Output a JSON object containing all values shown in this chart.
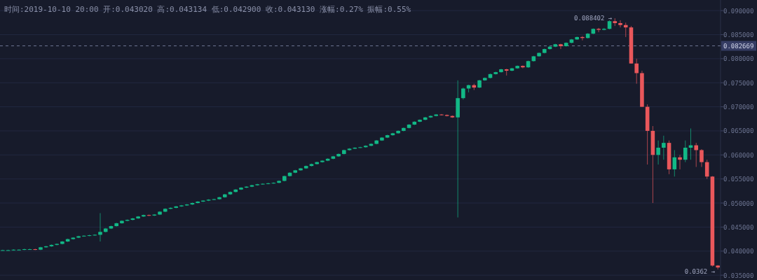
{
  "chart_data": {
    "type": "candlestick",
    "title": "时间:2019-10-10 20:00  开:0.043020  高:0.043134  低:0.042900  收:0.043130  涨幅:0.27%  振幅:0.55%",
    "categories": [
      null,
      null,
      null,
      null,
      null,
      null,
      null,
      null,
      null,
      null,
      null,
      null,
      null,
      null,
      null,
      null,
      null,
      null,
      null,
      null,
      null,
      null,
      null,
      null,
      null,
      null,
      null,
      null,
      null,
      null,
      null,
      null,
      null,
      null,
      null,
      null,
      null,
      null,
      null,
      null,
      null,
      null,
      null,
      null,
      null,
      null,
      null,
      null,
      null,
      null,
      null,
      null,
      null,
      null,
      null,
      null,
      null,
      null,
      null,
      null,
      null,
      null,
      null,
      null,
      null,
      null,
      null,
      null,
      null,
      null,
      null,
      null,
      null,
      null,
      null,
      null,
      null,
      null,
      null,
      null,
      null,
      null,
      null,
      null,
      null,
      null,
      null,
      null,
      null,
      null,
      null,
      null,
      null,
      null,
      null,
      null,
      null,
      null,
      null,
      null,
      null,
      null,
      null,
      null,
      null,
      null,
      null,
      null,
      null,
      null,
      null,
      null,
      null,
      null,
      null,
      null,
      null,
      null,
      null,
      null,
      null,
      null,
      null,
      null,
      null,
      null,
      null,
      null,
      null,
      null,
      null,
      null,
      null
    ],
    "ohlc": [
      [
        0.0402,
        0.0403,
        0.0401,
        0.0402
      ],
      [
        0.0402,
        0.0403,
        0.0401,
        0.0402
      ],
      [
        0.0402,
        0.0404,
        0.0401,
        0.0403
      ],
      [
        0.0403,
        0.0404,
        0.0402,
        0.0403
      ],
      [
        0.0403,
        0.0405,
        0.0402,
        0.0404
      ],
      [
        0.0404,
        0.0405,
        0.0403,
        0.0404
      ],
      [
        0.0404,
        0.0405,
        0.0402,
        0.0403
      ],
      [
        0.0403,
        0.0409,
        0.0402,
        0.0408
      ],
      [
        0.0408,
        0.0411,
        0.0407,
        0.041
      ],
      [
        0.041,
        0.0414,
        0.0409,
        0.0413
      ],
      [
        0.0413,
        0.0416,
        0.0412,
        0.0415
      ],
      [
        0.0415,
        0.0421,
        0.0414,
        0.042
      ],
      [
        0.042,
        0.0426,
        0.0419,
        0.0425
      ],
      [
        0.0425,
        0.0429,
        0.0424,
        0.0428
      ],
      [
        0.0428,
        0.0432,
        0.0427,
        0.0431
      ],
      [
        0.0431,
        0.0433,
        0.043,
        0.0432
      ],
      [
        0.0432,
        0.0434,
        0.0431,
        0.0433
      ],
      [
        0.0433,
        0.0435,
        0.0432,
        0.0434
      ],
      [
        0.0434,
        0.0479,
        0.042,
        0.044
      ],
      [
        0.044,
        0.0448,
        0.0439,
        0.0447
      ],
      [
        0.0447,
        0.0453,
        0.0446,
        0.0452
      ],
      [
        0.0452,
        0.0459,
        0.0451,
        0.0458
      ],
      [
        0.0458,
        0.0464,
        0.0457,
        0.0463
      ],
      [
        0.0463,
        0.0466,
        0.0462,
        0.0465
      ],
      [
        0.0465,
        0.0469,
        0.0464,
        0.0468
      ],
      [
        0.0468,
        0.0473,
        0.0467,
        0.0472
      ],
      [
        0.0472,
        0.0476,
        0.0471,
        0.0475
      ],
      [
        0.0475,
        0.0476,
        0.0473,
        0.0474
      ],
      [
        0.0474,
        0.0477,
        0.0473,
        0.0476
      ],
      [
        0.0476,
        0.0483,
        0.0475,
        0.0482
      ],
      [
        0.0482,
        0.0489,
        0.0481,
        0.0488
      ],
      [
        0.0488,
        0.0491,
        0.0487,
        0.049
      ],
      [
        0.049,
        0.0494,
        0.0489,
        0.0493
      ],
      [
        0.0493,
        0.0496,
        0.0492,
        0.0495
      ],
      [
        0.0495,
        0.0498,
        0.0494,
        0.0497
      ],
      [
        0.0497,
        0.0501,
        0.0496,
        0.05
      ],
      [
        0.05,
        0.0504,
        0.0499,
        0.0503
      ],
      [
        0.0503,
        0.0506,
        0.0502,
        0.0505
      ],
      [
        0.0505,
        0.0508,
        0.0504,
        0.0507
      ],
      [
        0.0507,
        0.0509,
        0.0506,
        0.0508
      ],
      [
        0.0508,
        0.0513,
        0.0507,
        0.0512
      ],
      [
        0.0512,
        0.0519,
        0.0511,
        0.0518
      ],
      [
        0.0518,
        0.0524,
        0.0517,
        0.0523
      ],
      [
        0.0523,
        0.0529,
        0.0522,
        0.0528
      ],
      [
        0.0528,
        0.0533,
        0.0527,
        0.0532
      ],
      [
        0.0532,
        0.0535,
        0.0531,
        0.0534
      ],
      [
        0.0534,
        0.0538,
        0.0533,
        0.0537
      ],
      [
        0.0537,
        0.054,
        0.0536,
        0.0539
      ],
      [
        0.0539,
        0.0541,
        0.0538,
        0.054
      ],
      [
        0.054,
        0.0542,
        0.0539,
        0.0541
      ],
      [
        0.0541,
        0.0543,
        0.054,
        0.0542
      ],
      [
        0.0542,
        0.0547,
        0.0541,
        0.0546
      ],
      [
        0.0546,
        0.0557,
        0.0545,
        0.0556
      ],
      [
        0.0556,
        0.0564,
        0.0555,
        0.0563
      ],
      [
        0.0563,
        0.0569,
        0.0562,
        0.0568
      ],
      [
        0.0568,
        0.0573,
        0.0567,
        0.0572
      ],
      [
        0.0572,
        0.0578,
        0.0571,
        0.0577
      ],
      [
        0.0577,
        0.0582,
        0.0576,
        0.0581
      ],
      [
        0.0581,
        0.0586,
        0.058,
        0.0585
      ],
      [
        0.0585,
        0.0589,
        0.0584,
        0.0588
      ],
      [
        0.0588,
        0.0593,
        0.0587,
        0.0592
      ],
      [
        0.0592,
        0.0598,
        0.0591,
        0.0597
      ],
      [
        0.0597,
        0.0603,
        0.0596,
        0.0602
      ],
      [
        0.0602,
        0.0611,
        0.0601,
        0.061
      ],
      [
        0.061,
        0.0614,
        0.0609,
        0.0613
      ],
      [
        0.0613,
        0.0616,
        0.0612,
        0.0615
      ],
      [
        0.0615,
        0.0617,
        0.0614,
        0.0616
      ],
      [
        0.0616,
        0.062,
        0.0615,
        0.0619
      ],
      [
        0.0619,
        0.0624,
        0.0618,
        0.0623
      ],
      [
        0.0623,
        0.0631,
        0.0622,
        0.063
      ],
      [
        0.063,
        0.0637,
        0.0629,
        0.0636
      ],
      [
        0.0636,
        0.0642,
        0.0635,
        0.0641
      ],
      [
        0.0641,
        0.0646,
        0.064,
        0.0645
      ],
      [
        0.0645,
        0.0651,
        0.0644,
        0.065
      ],
      [
        0.065,
        0.0657,
        0.0649,
        0.0656
      ],
      [
        0.0656,
        0.0664,
        0.0655,
        0.0663
      ],
      [
        0.0663,
        0.067,
        0.0662,
        0.0669
      ],
      [
        0.0669,
        0.0674,
        0.0668,
        0.0673
      ],
      [
        0.0673,
        0.0679,
        0.0672,
        0.0678
      ],
      [
        0.0678,
        0.0682,
        0.0677,
        0.0681
      ],
      [
        0.0681,
        0.0685,
        0.068,
        0.0684
      ],
      [
        0.0684,
        0.0685,
        0.0682,
        0.0683
      ],
      [
        0.0683,
        0.0684,
        0.068,
        0.0681
      ],
      [
        0.0681,
        0.0682,
        0.0677,
        0.0678
      ],
      [
        0.0678,
        0.0755,
        0.047,
        0.0718
      ],
      [
        0.0718,
        0.074,
        0.0715,
        0.0738
      ],
      [
        0.0738,
        0.0746,
        0.073,
        0.0745
      ],
      [
        0.0745,
        0.0748,
        0.0735,
        0.074
      ],
      [
        0.074,
        0.0756,
        0.0739,
        0.0755
      ],
      [
        0.0755,
        0.0761,
        0.0754,
        0.076
      ],
      [
        0.076,
        0.0769,
        0.0759,
        0.0768
      ],
      [
        0.0768,
        0.0773,
        0.0767,
        0.0772
      ],
      [
        0.0772,
        0.0779,
        0.0771,
        0.0778
      ],
      [
        0.0778,
        0.0779,
        0.0765,
        0.0775
      ],
      [
        0.0775,
        0.0781,
        0.0774,
        0.078
      ],
      [
        0.078,
        0.0786,
        0.0779,
        0.0785
      ],
      [
        0.0785,
        0.0786,
        0.078,
        0.0782
      ],
      [
        0.0782,
        0.0796,
        0.0781,
        0.0795
      ],
      [
        0.0795,
        0.0806,
        0.0794,
        0.0805
      ],
      [
        0.0805,
        0.0813,
        0.0804,
        0.0812
      ],
      [
        0.0812,
        0.0821,
        0.0811,
        0.082
      ],
      [
        0.082,
        0.0826,
        0.0819,
        0.0825
      ],
      [
        0.0825,
        0.0831,
        0.0824,
        0.083
      ],
      [
        0.083,
        0.0831,
        0.082,
        0.0826
      ],
      [
        0.0826,
        0.0834,
        0.0825,
        0.0833
      ],
      [
        0.0833,
        0.0841,
        0.0832,
        0.084
      ],
      [
        0.084,
        0.0846,
        0.0839,
        0.0845
      ],
      [
        0.0845,
        0.0847,
        0.0838,
        0.0843
      ],
      [
        0.0843,
        0.0853,
        0.0842,
        0.0852
      ],
      [
        0.0852,
        0.0863,
        0.0851,
        0.0862
      ],
      [
        0.0862,
        0.0864,
        0.0855,
        0.086
      ],
      [
        0.086,
        0.0864,
        0.0859,
        0.0862
      ],
      [
        0.0862,
        0.088,
        0.0861,
        0.0878
      ],
      [
        0.0878,
        0.088402,
        0.0868,
        0.0874
      ],
      [
        0.0874,
        0.088,
        0.0865,
        0.087
      ],
      [
        0.087,
        0.0875,
        0.0845,
        0.0865
      ],
      [
        0.0865,
        0.0868,
        0.079,
        0.079
      ],
      [
        0.079,
        0.08,
        0.0748,
        0.077
      ],
      [
        0.077,
        0.0775,
        0.07,
        0.07
      ],
      [
        0.07,
        0.0705,
        0.058,
        0.065
      ],
      [
        0.065,
        0.066,
        0.05,
        0.06
      ],
      [
        0.06,
        0.063,
        0.058,
        0.0615
      ],
      [
        0.0615,
        0.064,
        0.059,
        0.0625
      ],
      [
        0.0625,
        0.063,
        0.056,
        0.057
      ],
      [
        0.057,
        0.061,
        0.0555,
        0.0595
      ],
      [
        0.0595,
        0.06,
        0.057,
        0.059
      ],
      [
        0.059,
        0.063,
        0.0585,
        0.0615
      ],
      [
        0.0615,
        0.0655,
        0.059,
        0.062
      ],
      [
        0.062,
        0.0625,
        0.0575,
        0.061
      ],
      [
        0.061,
        0.0612,
        0.0575,
        0.0585
      ],
      [
        0.0585,
        0.059,
        0.055,
        0.0555
      ],
      [
        0.0555,
        0.0556,
        0.0368,
        0.037
      ],
      [
        0.037,
        0.0371,
        0.0362,
        0.0366
      ]
    ],
    "ylim": [
      0.034,
      0.0922
    ],
    "yticks": [
      {
        "value": 0.035,
        "label": "0.035000"
      },
      {
        "value": 0.04,
        "label": "0.040000"
      },
      {
        "value": 0.045,
        "label": "0.045000"
      },
      {
        "value": 0.05,
        "label": "0.050000"
      },
      {
        "value": 0.055,
        "label": "0.055000"
      },
      {
        "value": 0.06,
        "label": "0.060000"
      },
      {
        "value": 0.065,
        "label": "0.065000"
      },
      {
        "value": 0.07,
        "label": "0.070000"
      },
      {
        "value": 0.075,
        "label": "0.075000"
      },
      {
        "value": 0.08,
        "label": "0.080000"
      },
      {
        "value": 0.085,
        "label": "0.085000"
      },
      {
        "value": 0.09,
        "label": "0.090000"
      }
    ],
    "ref_lines": [
      {
        "axis": "y",
        "value": 0.082669,
        "label": "0.082669",
        "line_style": "dashed"
      }
    ],
    "annotations": [
      "0.088402 →",
      "0.0362 →"
    ],
    "grid": "y",
    "tick_labels": "y"
  }
}
